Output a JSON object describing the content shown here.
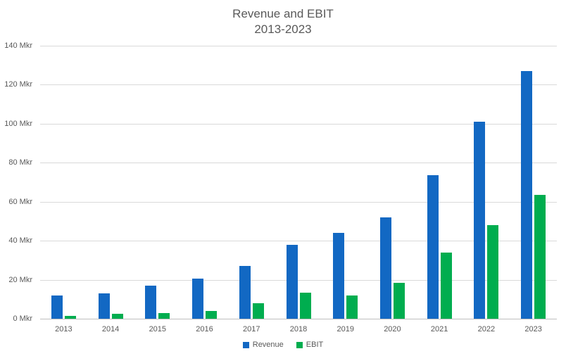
{
  "title": {
    "line1": "Revenue and EBIT",
    "line2": "2013-2023"
  },
  "colors": {
    "revenue": "#1268c3",
    "ebit": "#00ad4f",
    "text": "#595959",
    "gridline": "#d9d9d9",
    "axisline": "#bfbfbf",
    "background": "#ffffff"
  },
  "legend": {
    "items": [
      {
        "label": "Revenue",
        "color": "#1268c3",
        "swatch": "blue-square"
      },
      {
        "label": "EBIT",
        "color": "#00ad4f",
        "swatch": "green-square"
      }
    ],
    "position": "bottom-center"
  },
  "y_axis": {
    "unit": "Mkr",
    "tick_suffix": " Mkr",
    "ticks": [
      0,
      20,
      40,
      60,
      80,
      100,
      120,
      140
    ]
  },
  "chart_data": {
    "type": "bar",
    "title": "Revenue and EBIT 2013-2023",
    "categories": [
      "2013",
      "2014",
      "2015",
      "2016",
      "2017",
      "2018",
      "2019",
      "2020",
      "2021",
      "2022",
      "2023"
    ],
    "series": [
      {
        "name": "Revenue",
        "color": "#1268c3",
        "values": [
          12,
          13,
          17,
          20.5,
          27,
          38,
          44,
          52,
          73.5,
          101,
          127
        ]
      },
      {
        "name": "EBIT",
        "color": "#00ad4f",
        "values": [
          1.5,
          2.5,
          3,
          4,
          8,
          13.5,
          12,
          18.5,
          34,
          48,
          63.5
        ]
      }
    ],
    "xlabel": "",
    "ylabel": "Mkr",
    "ylim": [
      0,
      140
    ],
    "y_tick_step": 20,
    "grid": true,
    "legend_position": "bottom"
  }
}
